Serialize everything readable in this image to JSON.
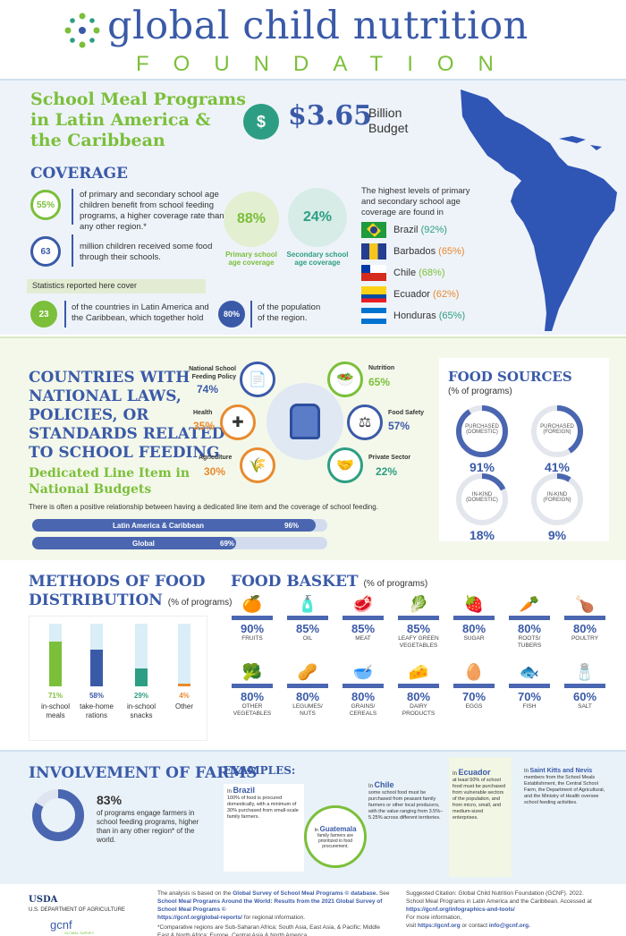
{
  "brand": {
    "main": "global child nutrition",
    "sub": "FOUNDATION"
  },
  "intro": {
    "title_line1": "School Meal Programs",
    "title_line2": "in Latin America &",
    "title_line3": "the Caribbean",
    "budget_value": "$3.65",
    "budget_unit1": "Billion",
    "budget_unit2": "Budget"
  },
  "coverage": {
    "heading": "COVERAGE",
    "stat1_value": "55%",
    "stat1_text": "of primary and secondary school age children benefit from school feeding programs, a higher coverage rate than any other region.*",
    "stat2_value": "63",
    "stat2_text": "million children received some food through their schools.",
    "primary_value": "88%",
    "primary_label": "Primary school age coverage",
    "secondary_value": "24%",
    "secondary_label": "Secondary school age coverage",
    "stats_note": "Statistics reported here cover",
    "countries_value": "23",
    "countries_text": "of the countries in Latin America and the Caribbean, which together hold",
    "population_value": "80%",
    "population_text": "of the population of the region.",
    "highest_text": "The highest levels of primary and secondary school age coverage are found in",
    "countries": [
      {
        "name": "Brazil",
        "pct": "(92%)"
      },
      {
        "name": "Barbados",
        "pct": "(65%)"
      },
      {
        "name": "Chile",
        "pct": "(68%)"
      },
      {
        "name": "Ecuador",
        "pct": "(62%)"
      },
      {
        "name": "Honduras",
        "pct": "(65%)"
      }
    ]
  },
  "laws": {
    "heading_l1": "COUNTRIES WITH",
    "heading_l2": "NATIONAL LAWS,",
    "heading_l3": "POLICIES, OR",
    "heading_l4": "STANDARDS RELATED",
    "heading_l5": "TO SCHOOL FEEDING",
    "items": [
      {
        "label_l1": "National School",
        "label_l2": "Feeding Policy",
        "pct": "74%"
      },
      {
        "label_l1": "Nutrition",
        "label_l2": "",
        "pct": "65%"
      },
      {
        "label_l1": "Health",
        "label_l2": "",
        "pct": "35%"
      },
      {
        "label_l1": "Food Safety",
        "label_l2": "",
        "pct": "57%"
      },
      {
        "label_l1": "Agriculture",
        "label_l2": "",
        "pct": "30%"
      },
      {
        "label_l1": "Private Sector",
        "label_l2": "",
        "pct": "22%"
      }
    ],
    "dedicated_l1": "Dedicated Line Item in",
    "dedicated_l2": "National Budgets",
    "relationship_text": "There is often a positive relationship between having a dedicated line item and the coverage of school feeding.",
    "bars": [
      {
        "label": "Latin America & Caribbean",
        "value": "96%",
        "fraction": 0.96
      },
      {
        "label": "Global",
        "value": "69%",
        "fraction": 0.69
      }
    ]
  },
  "food_sources": {
    "heading": "FOOD SOURCES",
    "sub": "(% of programs)",
    "items": [
      {
        "label_l1": "PURCHASED",
        "label_l2": "(DOMESTIC)",
        "value": "91%",
        "fraction": 0.91
      },
      {
        "label_l1": "PURCHASED",
        "label_l2": "(FOREIGN)",
        "value": "41%",
        "fraction": 0.41
      },
      {
        "label_l1": "IN-KIND",
        "label_l2": "(DOMESTIC)",
        "value": "18%",
        "fraction": 0.18
      },
      {
        "label_l1": "IN-KIND",
        "label_l2": "(FOREIGN)",
        "value": "9%",
        "fraction": 0.09
      }
    ]
  },
  "methods": {
    "heading_l1": "METHODS OF FOOD",
    "heading_l2": "DISTRIBUTION",
    "sub": "(% of programs)",
    "items": [
      {
        "value": "71%",
        "label_l1": "in-school",
        "label_l2": "meals",
        "fraction": 0.71,
        "color": "#7bbf3a"
      },
      {
        "value": "58%",
        "label_l1": "take-home",
        "label_l2": "rations",
        "fraction": 0.58,
        "color": "#3a5aa8"
      },
      {
        "value": "29%",
        "label_l1": "in-school",
        "label_l2": "snacks",
        "fraction": 0.29,
        "color": "#2d9e83"
      },
      {
        "value": "4%",
        "label_l1": "Other",
        "label_l2": "",
        "fraction": 0.04,
        "color": "#e98a2e"
      }
    ]
  },
  "food_basket": {
    "heading": "FOOD BASKET",
    "sub": "(% of programs)",
    "items": [
      {
        "value": "90%",
        "label_l1": "FRUITS",
        "label_l2": "",
        "icon": "fruit-icon",
        "glyph": "🍊"
      },
      {
        "value": "85%",
        "label_l1": "OIL",
        "label_l2": "",
        "icon": "oil-icon",
        "glyph": "🧴"
      },
      {
        "value": "85%",
        "label_l1": "MEAT",
        "label_l2": "",
        "icon": "meat-icon",
        "glyph": "🥩"
      },
      {
        "value": "85%",
        "label_l1": "LEAFY GREEN",
        "label_l2": "VEGETABLES",
        "icon": "leafy-greens-icon",
        "glyph": "🥬"
      },
      {
        "value": "80%",
        "label_l1": "SUGAR",
        "label_l2": "",
        "icon": "sugar-icon",
        "glyph": "🍓"
      },
      {
        "value": "80%",
        "label_l1": "ROOTS/",
        "label_l2": "TUBERS",
        "icon": "roots-icon",
        "glyph": "🥕"
      },
      {
        "value": "80%",
        "label_l1": "POULTRY",
        "label_l2": "",
        "icon": "poultry-icon",
        "glyph": "🍗"
      },
      {
        "value": "80%",
        "label_l1": "OTHER",
        "label_l2": "VEGETABLES",
        "icon": "broccoli-icon",
        "glyph": "🥦"
      },
      {
        "value": "80%",
        "label_l1": "LEGUMES/",
        "label_l2": "NUTS",
        "icon": "legumes-icon",
        "glyph": "🥜"
      },
      {
        "value": "80%",
        "label_l1": "GRAINS/",
        "label_l2": "CEREALS",
        "icon": "grains-icon",
        "glyph": "🥣"
      },
      {
        "value": "80%",
        "label_l1": "DAIRY",
        "label_l2": "PRODUCTS",
        "icon": "dairy-icon",
        "glyph": "🧀"
      },
      {
        "value": "70%",
        "label_l1": "EGGS",
        "label_l2": "",
        "icon": "eggs-icon",
        "glyph": "🥚"
      },
      {
        "value": "70%",
        "label_l1": "FISH",
        "label_l2": "",
        "icon": "fish-icon",
        "glyph": "🐟"
      },
      {
        "value": "60%",
        "label_l1": "SALT",
        "label_l2": "",
        "icon": "salt-icon",
        "glyph": "🧂"
      }
    ]
  },
  "farms": {
    "heading": "INVOLVEMENT OF FARMS",
    "value": "83%",
    "fraction": 0.83,
    "text": "of programs engage farmers in school feeding programs, higher than in any other region* of the world.",
    "examples_heading": "EXAMPLES:",
    "brazil_title": "Brazil",
    "brazil_text": "100% of food is procured domestically, with a minimum of 30% purchased from small-scale family farmers.",
    "guatemala_title": "Guatemala",
    "guatemala_text": "family farmers are prioritized in food procurement.",
    "chile_title": "Chile",
    "chile_text": "some school food must be purchased from peasant family farmers or other local producers, with the value ranging from 3.5%–5.25% across different territories.",
    "ecuador_title": "Ecuador",
    "ecuador_text": "at least 50% of school food must be purchased from vulnerable sectors of the population, and from micro, small, and medium-sized enterprises.",
    "skn_title": "Saint Kitts and Nevis",
    "skn_text": "members from the School Meals Establishment, the Central School Farm, the Department of Agricultural, and the Ministry of Health oversee school feeding activities.",
    "in_word": "In"
  },
  "footer": {
    "usda_text": "U.S. DEPARTMENT OF AGRICULTURE",
    "usda_logo": "USDA",
    "gcnf_logo": "gcnf",
    "gcnf_sub": "GLOBAL SURVEY",
    "analysis_text1": "The analysis is based on the",
    "survey_link": "Global Survey of School Meal Programs © database.",
    "see_text": "See",
    "report_link": "School Meal Programs Around the World: Results from the 2021 Global Survey of School Meal Programs ©",
    "reports_link": "https://gcnf.org/global-reports/",
    "reports_suffix": "for regional information.",
    "comparative_text": "*Comparative regions are Sub-Saharan Africa; South Asia, East Asia, & Pacific; Middle East & North Africa; Europe, Central Asia & North America.",
    "citation_text": "Suggested Citation: Global Child Nutrition Foundation (GCNF). 2022. School Meal Programs in Latin America and the Caribbean. Accessed at",
    "citation_link": "https://gcnf.org/infographics-and-tools/",
    "more_text": "For more information,",
    "visit_text": "visit",
    "site_link": "https://gcnf.org",
    "contact_text": "or contact",
    "email_link": "info@gcnf.org."
  }
}
